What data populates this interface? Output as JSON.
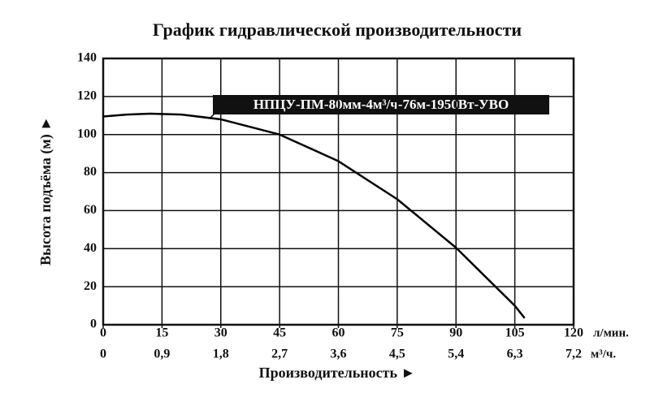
{
  "chart_data": {
    "type": "line",
    "title": "График гидравлической производительности",
    "x_label": "Производительность ►",
    "y_label": "Высота подъёма (м) ►",
    "x_unit": "л/мин.",
    "x2_unit": "м³/ч.",
    "xlim": [
      0,
      120
    ],
    "xticks": [
      0,
      15,
      30,
      45,
      60,
      75,
      90,
      105,
      120
    ],
    "x2lim": [
      0,
      7.2
    ],
    "x2ticks": [
      0,
      {
        "value": 0.9,
        "label": "0,9"
      },
      {
        "value": 1.8,
        "label": "1,8"
      },
      {
        "value": 2.7,
        "label": "2,7"
      },
      {
        "value": 3.6,
        "label": "3,6"
      },
      {
        "value": 4.5,
        "label": "4,5"
      },
      {
        "value": 5.4,
        "label": "5,4"
      },
      {
        "value": 6.3,
        "label": "6,3"
      },
      {
        "value": 7.2,
        "label": "7,2"
      }
    ],
    "ylim": [
      0,
      140
    ],
    "yticks": [
      0,
      20,
      40,
      60,
      80,
      100,
      120,
      140
    ],
    "grid": true,
    "x": [
      0,
      6,
      12,
      20,
      30,
      45,
      60,
      75,
      90,
      105,
      107.5
    ],
    "series": [
      {
        "name": "НПЦУ-ПМ-80мм-4м³/ч-76м-1950Вт-УВО",
        "color": "#000000",
        "values": [
          109.5,
          110.5,
          111,
          110.5,
          108,
          100,
          86,
          66,
          40.5,
          10,
          3.5
        ]
      }
    ]
  }
}
